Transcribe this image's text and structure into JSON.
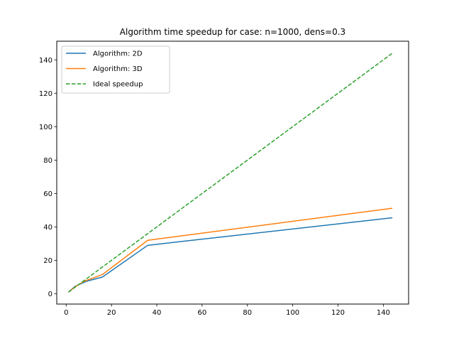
{
  "chart_data": {
    "type": "line",
    "title": "Algorithm time speedup for case: n=1000, dens=0.3",
    "xlabel": "",
    "ylabel": "",
    "xlim": [
      -4.15,
      151.15
    ],
    "ylim": [
      -6.15,
      151.15
    ],
    "x_ticks": [
      0,
      20,
      40,
      60,
      80,
      100,
      120,
      140
    ],
    "y_ticks": [
      0,
      20,
      40,
      60,
      80,
      100,
      120,
      140
    ],
    "grid": false,
    "legend_position": "upper left",
    "series": [
      {
        "name": "Algorithm: 2D",
        "color": "#1f77b4",
        "dash": "solid",
        "x": [
          1,
          4,
          9,
          16,
          36,
          144
        ],
        "y": [
          1,
          4.5,
          7.5,
          10,
          29,
          45.5
        ]
      },
      {
        "name": "Algorithm: 3D",
        "color": "#ff7f0e",
        "dash": "solid",
        "x": [
          1,
          4,
          8,
          16,
          36,
          144
        ],
        "y": [
          1,
          4.2,
          7.5,
          11.5,
          32,
          51.2
        ]
      },
      {
        "name": "Ideal speedup",
        "color": "#2ca02c",
        "dash": "dashed",
        "x": [
          1,
          4,
          8,
          16,
          36,
          144
        ],
        "y": [
          1,
          4,
          8,
          16,
          36,
          144
        ]
      }
    ]
  }
}
